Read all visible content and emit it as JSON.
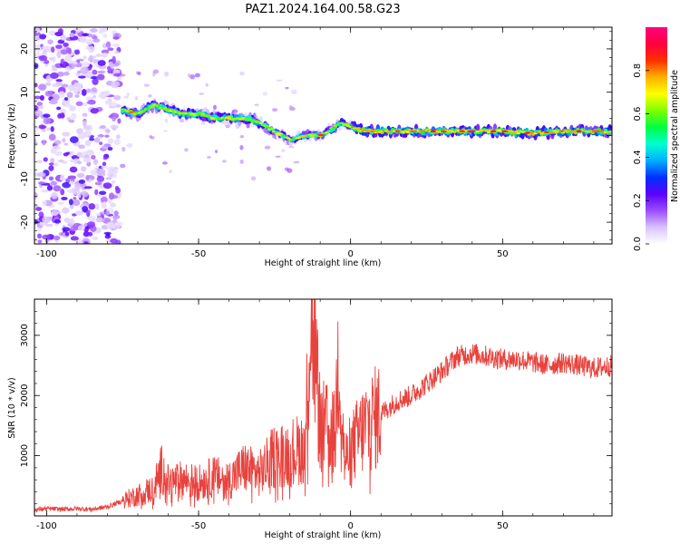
{
  "figure": {
    "title": "PAZ1.2024.164.00.58.G23"
  },
  "chart_data": [
    {
      "type": "heatmap",
      "title": "PAZ1.2024.164.00.58.G23",
      "xlabel": "Height of straight line (km)",
      "ylabel": "Frequency (Hz)",
      "xlim": [
        -104,
        86
      ],
      "ylim": [
        -25,
        25
      ],
      "x_ticks": [
        -100,
        -50,
        0,
        50
      ],
      "y_ticks": [
        -20,
        -10,
        0,
        10,
        20
      ],
      "x_tick_labels": [
        "-100",
        "-50",
        "0",
        "50"
      ],
      "y_tick_labels": [
        "-20",
        "-10",
        "0",
        "10",
        "20"
      ],
      "colorbar": {
        "label": "Normalized spectral amplitude",
        "range": [
          0,
          1
        ],
        "ticks": [
          0.0,
          0.2,
          0.4,
          0.6,
          0.8
        ],
        "tick_labels": [
          "0.0",
          "0.2",
          "0.4",
          "0.6",
          "0.8"
        ],
        "colormap": [
          "#ffffff",
          "#d9c2ff",
          "#9b4dff",
          "#5b00ff",
          "#0030ff",
          "#00b0ff",
          "#00ffd0",
          "#00ff40",
          "#80ff00",
          "#ffff00",
          "#ffb000",
          "#ff3000",
          "#ff0040",
          "#ff0080"
        ]
      },
      "ridge": {
        "description_values": "dominant frequency vs height (km, Hz)",
        "x": [
          -75,
          -70,
          -65,
          -60,
          -55,
          -50,
          -45,
          -40,
          -35,
          -30,
          -25,
          -20,
          -15,
          -10,
          -5,
          -3,
          0,
          5,
          10,
          20,
          30,
          40,
          50,
          60,
          70,
          80,
          86
        ],
        "y": [
          6,
          5,
          7,
          6,
          5,
          5,
          4,
          4,
          4,
          3,
          1,
          -1,
          0,
          0,
          2,
          3,
          2,
          1,
          1,
          1,
          1,
          1,
          1,
          0.5,
          1,
          1,
          1
        ]
      },
      "noise_region": {
        "x_range": [
          -104,
          -76
        ],
        "y_range": [
          -25,
          25
        ]
      },
      "grid": false
    },
    {
      "type": "line",
      "xlabel": "Height of straight line (km)",
      "ylabel": "SNR (10 * v/v)",
      "xlim": [
        -104,
        86
      ],
      "ylim": [
        0,
        3600
      ],
      "x_ticks": [
        -100,
        -50,
        0,
        50
      ],
      "y_ticks": [
        1000,
        2000,
        3000
      ],
      "x_tick_labels": [
        "-100",
        "-50",
        "0",
        "50"
      ],
      "y_tick_labels": [
        "1000",
        "2000",
        "3000"
      ],
      "color": "#e8423d",
      "grid": false,
      "series": [
        {
          "x": [
            -104,
            -100,
            -95,
            -90,
            -85,
            -80,
            -75,
            -70,
            -65,
            -62,
            -60,
            -55,
            -50,
            -45,
            -40,
            -35,
            -30,
            -25,
            -20,
            -15,
            -13,
            -10,
            -5,
            -4,
            -2,
            0,
            5,
            10,
            15,
            20,
            25,
            30,
            35,
            40,
            45,
            50,
            55,
            60,
            65,
            70,
            75,
            80,
            86
          ],
          "y": [
            100,
            120,
            110,
            120,
            110,
            150,
            250,
            350,
            450,
            800,
            550,
            600,
            550,
            650,
            600,
            800,
            700,
            1000,
            1050,
            1150,
            3550,
            1500,
            1350,
            2850,
            900,
            1100,
            1500,
            1700,
            1900,
            2000,
            2200,
            2400,
            2650,
            2700,
            2650,
            2600,
            2600,
            2550,
            2500,
            2550,
            2500,
            2450,
            2500
          ]
        }
      ]
    }
  ]
}
